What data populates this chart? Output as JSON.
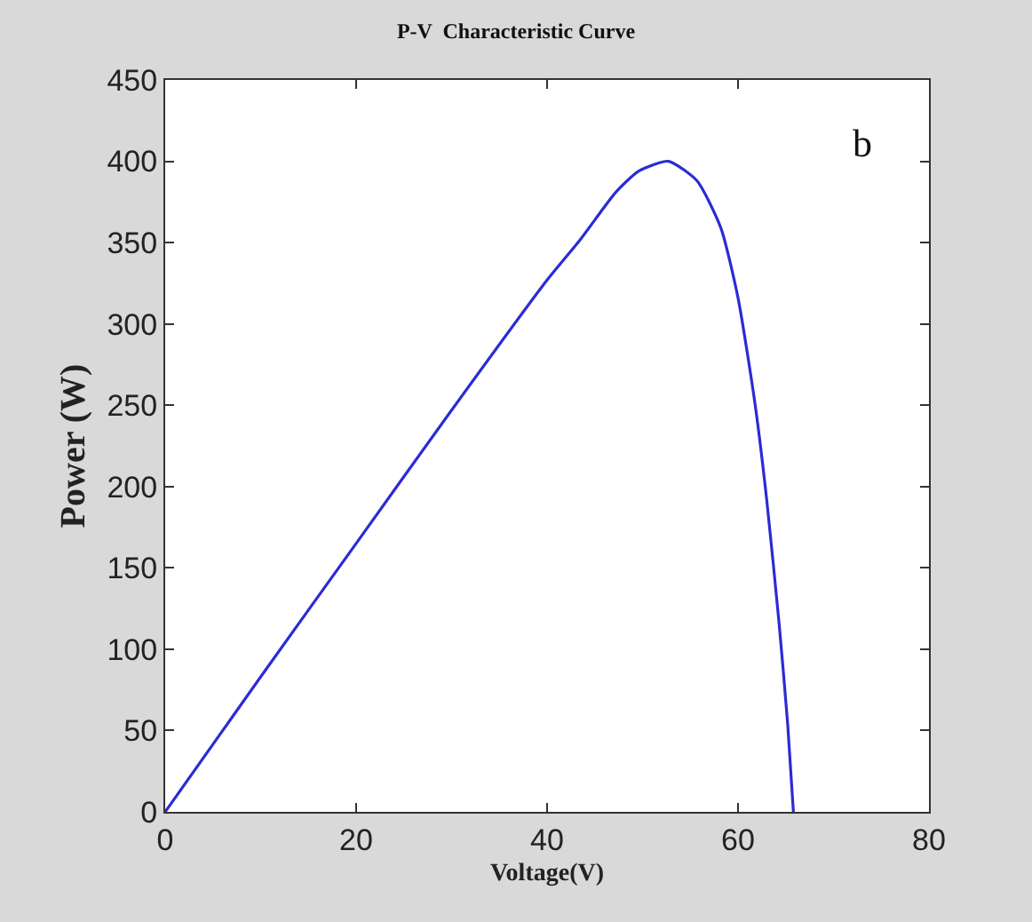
{
  "chart_data": {
    "type": "line",
    "title": "P-V  Characteristic Curve",
    "xlabel": "Voltage(V)",
    "ylabel": "Power (W)",
    "annotations": [
      "b"
    ],
    "x": [
      0,
      10,
      20,
      30,
      40,
      43.5,
      47.2,
      49.6,
      52.7,
      55.7,
      58.2,
      60,
      61.8,
      63,
      64.3,
      65.2,
      65.8
    ],
    "series": [
      {
        "color": "#2b2bd6",
        "values": [
          0,
          83,
          165,
          247,
          327,
          352,
          381,
          394,
          400,
          388,
          359,
          316,
          250,
          192,
          116,
          54,
          0
        ]
      }
    ],
    "xlim": [
      0,
      80
    ],
    "xticks": [
      0,
      20,
      40,
      60,
      80
    ],
    "ylim": [
      0,
      450
    ],
    "yticks": [
      0,
      50,
      100,
      150,
      200,
      250,
      300,
      350,
      400,
      450
    ],
    "legend": false,
    "marker": "none",
    "line_style": "solid"
  }
}
